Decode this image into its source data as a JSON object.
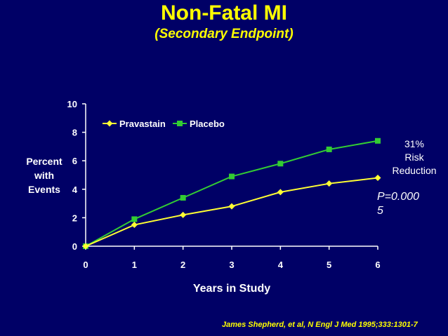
{
  "chart_data": {
    "type": "line",
    "title": "Non-Fatal MI",
    "subtitle": "(Secondary Endpoint)",
    "xlabel": "Years in Study",
    "ylabel_lines": [
      "Percent",
      "with",
      "Events"
    ],
    "x": [
      0,
      1,
      2,
      3,
      4,
      5,
      6
    ],
    "xlim": [
      0,
      6
    ],
    "ylim": [
      0,
      10
    ],
    "yticks": [
      0,
      2,
      4,
      6,
      8,
      10
    ],
    "series": [
      {
        "name": "Pravastain",
        "color": "#ffff33",
        "marker": "diamond",
        "values": [
          0,
          1.5,
          2.2,
          2.8,
          3.8,
          4.4,
          4.8
        ]
      },
      {
        "name": "Placebo",
        "color": "#33cc33",
        "marker": "square",
        "values": [
          0,
          1.9,
          3.4,
          4.9,
          5.8,
          6.8,
          7.4
        ]
      }
    ],
    "legend_position": "top-left",
    "annotation_lines": [
      "31%",
      "Risk",
      "Reduction"
    ],
    "pvalue_lines": [
      "P=0.000",
      "5"
    ],
    "citation": "James Shepherd, et al, N Engl J Med 1995;333:1301-7"
  }
}
